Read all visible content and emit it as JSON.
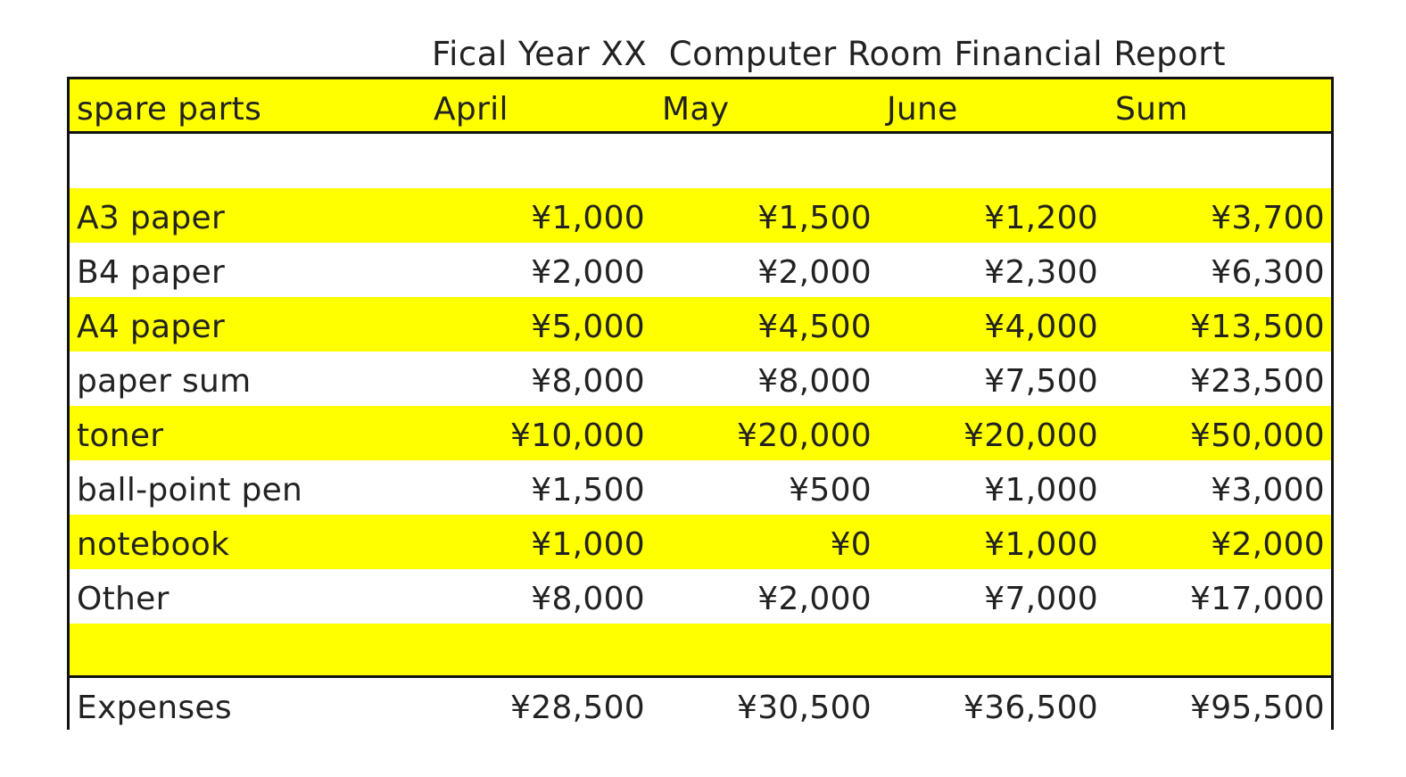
{
  "title": "Fical Year XX  Computer Room Financial Report",
  "header": {
    "label": "spare parts",
    "april": "April",
    "may": "May",
    "june": "June",
    "sum": "Sum"
  },
  "rows": [
    {
      "label": "",
      "april": "",
      "may": "",
      "june": "",
      "sum": ""
    },
    {
      "label": "A3 paper",
      "april": "¥1,000",
      "may": "¥1,500",
      "june": "¥1,200",
      "sum": "¥3,700"
    },
    {
      "label": "B4 paper",
      "april": "¥2,000",
      "may": "¥2,000",
      "june": "¥2,300",
      "sum": "¥6,300"
    },
    {
      "label": "A4 paper",
      "april": "¥5,000",
      "may": "¥4,500",
      "june": "¥4,000",
      "sum": "¥13,500"
    },
    {
      "label": "paper sum",
      "april": "¥8,000",
      "may": "¥8,000",
      "june": "¥7,500",
      "sum": "¥23,500"
    },
    {
      "label": "toner",
      "april": "¥10,000",
      "may": "¥20,000",
      "june": "¥20,000",
      "sum": "¥50,000"
    },
    {
      "label": "ball-point pen",
      "april": "¥1,500",
      "may": "¥500",
      "june": "¥1,000",
      "sum": "¥3,000"
    },
    {
      "label": "notebook",
      "april": "¥1,000",
      "may": "¥0",
      "june": "¥1,000",
      "sum": "¥2,000"
    },
    {
      "label": "Other",
      "april": "¥8,000",
      "may": "¥2,000",
      "june": "¥7,000",
      "sum": "¥17,000"
    },
    {
      "label": "",
      "april": "",
      "may": "",
      "june": "",
      "sum": ""
    }
  ],
  "total": {
    "label": "Expenses",
    "april": "¥28,500",
    "may": "¥30,500",
    "june": "¥36,500",
    "sum": "¥95,500"
  },
  "colors": {
    "highlight": "#ffff00",
    "border": "#111111"
  }
}
